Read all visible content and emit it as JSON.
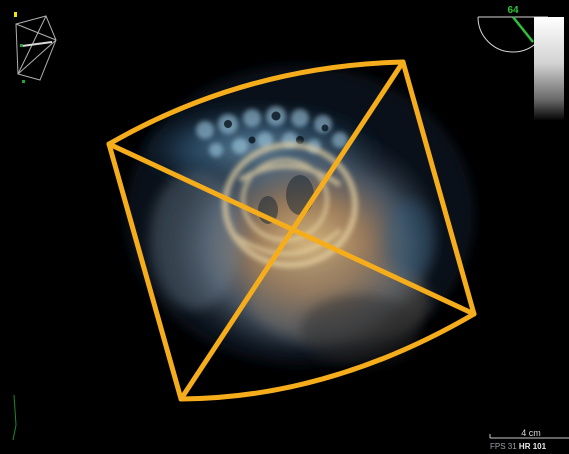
{
  "overlay": {
    "angle_value": "64",
    "scale_label": "4 cm",
    "fps_label": "FPS 31",
    "hr_label": "HR 101"
  },
  "colors": {
    "background": "#000000",
    "frame_outline": "#f5ad1c",
    "indicator_green": "#2ec13a",
    "tissue_blue": "#6e9dbd",
    "tissue_gold": "#c9a36a"
  }
}
